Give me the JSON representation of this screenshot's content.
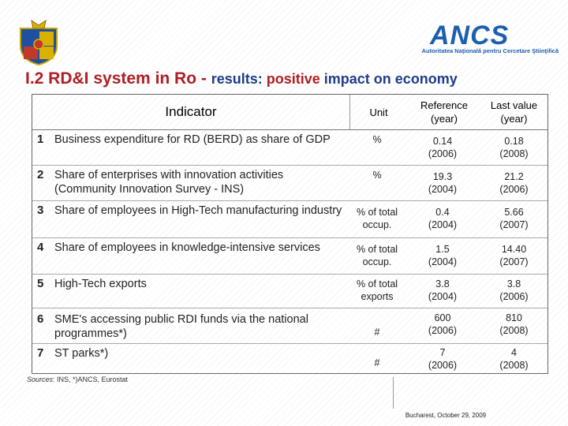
{
  "logo": {
    "name": "ANCS",
    "subtitle": "Autoritatea Naţională pentru Cercetare Ştiinţifică"
  },
  "title": {
    "main": "I.2 RD&I system in Ro - ",
    "results": "results",
    "colon": ": ",
    "positive": "positive",
    "rest": " impact on economy"
  },
  "table": {
    "headers": {
      "indicator": "Indicator",
      "unit": "Unit",
      "reference": "Reference (year)",
      "last_value": "Last value (year)"
    },
    "rows": [
      {
        "num": "1",
        "indicator": "Business expenditure for RD (BERD) as share of GDP",
        "unit": "%",
        "ref_value": "0.14",
        "ref_year": "(2006)",
        "last_value": "0.18",
        "last_year": "(2008)"
      },
      {
        "num": "2",
        "indicator": "Share of enterprises with innovation activities (Community Innovation Survey - INS)",
        "unit": "%",
        "ref_value": "19.3",
        "ref_year": "(2004)",
        "last_value": "21.2",
        "last_year": "(2006)"
      },
      {
        "num": "3",
        "indicator": "Share of employees in High-Tech manufacturing industry",
        "unit": "% of total occup.",
        "ref_value": "0.4",
        "ref_year": "(2004)",
        "last_value": "5.66",
        "last_year": "(2007)"
      },
      {
        "num": "4",
        "indicator": "Share of employees in knowledge-intensive services",
        "unit": "% of total occup.",
        "ref_value": "1.5",
        "ref_year": "(2004)",
        "last_value": "14.40",
        "last_year": "(2007)"
      },
      {
        "num": "5",
        "indicator": "High-Tech exports",
        "unit": "% of total exports",
        "ref_value": "3.8",
        "ref_year": "(2004)",
        "last_value": "3.8",
        "last_year": "(2006)"
      },
      {
        "num": "6",
        "indicator": "SME's accessing public RDI funds  via the national programmes*)",
        "unit": "#",
        "ref_value": "600",
        "ref_year": "(2006)",
        "last_value": "810",
        "last_year": "(2008)"
      },
      {
        "num": "7",
        "indicator": "ST parks*)",
        "unit": "#",
        "ref_value": "7",
        "ref_year": "(2006)",
        "last_value": "4",
        "last_year": "(2008)"
      }
    ]
  },
  "sources": {
    "label": "Sources",
    "text": ": INS, *)ANCS, Eurostat"
  },
  "footer": "Bucharest, October 29, 2009",
  "colors": {
    "red": "#b01e23",
    "blue": "#1e3d87",
    "logo_blue": "#1b5fae"
  },
  "icons": {
    "crest": "romania-coat-of-arms-icon"
  }
}
